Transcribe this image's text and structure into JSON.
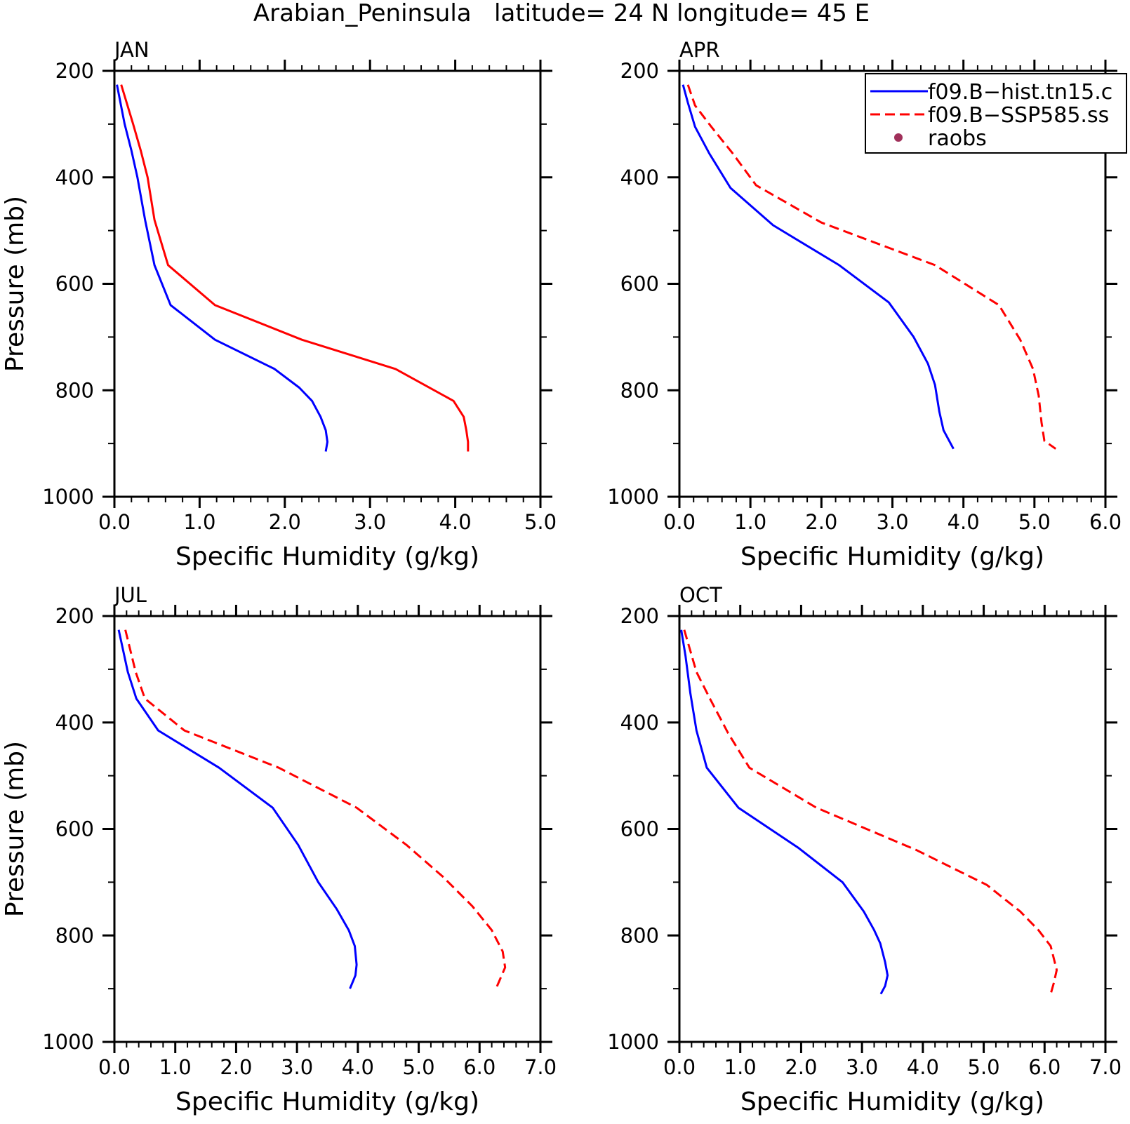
{
  "figure": {
    "title": "Arabian_Peninsula   latitude= 24 N longitude= 45 E"
  },
  "legend": {
    "placement": "top-right of APR panel",
    "entries": [
      {
        "label": "f09.B−hist.tn15.c",
        "color": "#0000ff",
        "style": "solid"
      },
      {
        "label": "f09.B−SSP585.ss",
        "color": "#ff0000",
        "style": "dashed"
      },
      {
        "label": "raobs",
        "color": "#a0305a",
        "style": "dot"
      }
    ]
  },
  "chart_data": [
    {
      "type": "line",
      "panel_label": "JAN",
      "xlabel": "Specific Humidity (g/kg)",
      "ylabel": "Pressure (mb)",
      "xlim": [
        0,
        5
      ],
      "ylim": [
        200,
        1000
      ],
      "xticks": [
        "0.0",
        "1.0",
        "2.0",
        "3.0",
        "4.0",
        "5.0"
      ],
      "yticks": [
        "200",
        "400",
        "600",
        "800",
        "1000"
      ],
      "series": [
        {
          "name": "f09.B−hist.tn15.c",
          "color": "#0000ff",
          "dashed": false,
          "x": [
            0.03,
            0.12,
            0.2,
            0.27,
            0.36,
            0.47,
            0.66,
            1.18,
            1.88,
            2.17,
            2.32,
            2.42,
            2.48,
            2.5,
            2.48
          ],
          "y": [
            226,
            300,
            350,
            400,
            480,
            565,
            640,
            705,
            760,
            795,
            820,
            850,
            875,
            897,
            915
          ]
        },
        {
          "name": "f09.B−SSP585.ss",
          "color": "#ff0000",
          "dashed": false,
          "x": [
            0.08,
            0.22,
            0.31,
            0.39,
            0.47,
            0.63,
            1.18,
            2.2,
            3.3,
            3.98,
            4.1,
            4.13,
            4.15,
            4.15
          ],
          "y": [
            226,
            300,
            350,
            400,
            480,
            565,
            640,
            705,
            760,
            820,
            850,
            875,
            897,
            915
          ]
        }
      ]
    },
    {
      "type": "line",
      "panel_label": "APR",
      "xlabel": "Specific Humidity (g/kg)",
      "ylabel": "",
      "xlim": [
        0,
        6
      ],
      "ylim": [
        200,
        1000
      ],
      "xticks": [
        "0.0",
        "1.0",
        "2.0",
        "3.0",
        "4.0",
        "5.0",
        "6.0"
      ],
      "yticks": [
        "200",
        "400",
        "600",
        "800",
        "1000"
      ],
      "series": [
        {
          "name": "f09.B−hist.tn15.c",
          "color": "#0000ff",
          "dashed": false,
          "x": [
            0.05,
            0.12,
            0.22,
            0.42,
            0.72,
            1.32,
            2.25,
            2.95,
            3.3,
            3.5,
            3.6,
            3.66,
            3.72,
            3.86
          ],
          "y": [
            226,
            260,
            305,
            355,
            420,
            490,
            565,
            635,
            700,
            750,
            790,
            840,
            875,
            910
          ]
        },
        {
          "name": "f09.B−SSP585.ss",
          "color": "#ff0000",
          "dashed": true,
          "x": [
            0.12,
            0.22,
            0.45,
            0.75,
            1.08,
            2.0,
            3.6,
            4.5,
            4.8,
            4.98,
            5.06,
            5.1,
            5.14,
            5.3
          ],
          "y": [
            226,
            265,
            305,
            355,
            415,
            485,
            565,
            640,
            705,
            760,
            810,
            860,
            895,
            910
          ]
        }
      ]
    },
    {
      "type": "line",
      "panel_label": "JUL",
      "xlabel": "Specific Humidity (g/kg)",
      "ylabel": "Pressure (mb)",
      "xlim": [
        0,
        7
      ],
      "ylim": [
        200,
        1000
      ],
      "xticks": [
        "0.0",
        "1.0",
        "2.0",
        "3.0",
        "4.0",
        "5.0",
        "6.0",
        "7.0"
      ],
      "yticks": [
        "200",
        "400",
        "600",
        "800",
        "1000"
      ],
      "series": [
        {
          "name": "f09.B−hist.tn15.c",
          "color": "#0000ff",
          "dashed": false,
          "x": [
            0.07,
            0.22,
            0.36,
            0.72,
            1.72,
            2.6,
            3.02,
            3.35,
            3.65,
            3.85,
            3.95,
            3.98,
            3.96,
            3.87
          ],
          "y": [
            226,
            305,
            355,
            415,
            485,
            560,
            630,
            700,
            750,
            790,
            820,
            855,
            875,
            900
          ]
        },
        {
          "name": "f09.B−SSP585.ss",
          "color": "#ff0000",
          "dashed": true,
          "x": [
            0.18,
            0.35,
            0.5,
            1.15,
            2.7,
            3.98,
            4.8,
            5.4,
            5.88,
            6.2,
            6.38,
            6.42,
            6.27
          ],
          "y": [
            226,
            305,
            355,
            415,
            485,
            560,
            630,
            690,
            745,
            790,
            830,
            860,
            900
          ]
        }
      ]
    },
    {
      "type": "line",
      "panel_label": "OCT",
      "xlabel": "Specific Humidity (g/kg)",
      "ylabel": "",
      "xlim": [
        0,
        7
      ],
      "ylim": [
        200,
        1000
      ],
      "xticks": [
        "0.0",
        "1.0",
        "2.0",
        "3.0",
        "4.0",
        "5.0",
        "6.0",
        "7.0"
      ],
      "yticks": [
        "200",
        "400",
        "600",
        "800",
        "1000"
      ],
      "series": [
        {
          "name": "f09.B−hist.tn15.c",
          "color": "#0000ff",
          "dashed": false,
          "x": [
            0.03,
            0.1,
            0.18,
            0.28,
            0.45,
            0.97,
            1.95,
            2.68,
            3.03,
            3.2,
            3.3,
            3.38,
            3.42,
            3.38,
            3.31
          ],
          "y": [
            226,
            275,
            345,
            415,
            485,
            560,
            635,
            700,
            755,
            790,
            815,
            850,
            875,
            895,
            910
          ]
        },
        {
          "name": "f09.B−SSP585.ss",
          "color": "#ff0000",
          "dashed": true,
          "x": [
            0.08,
            0.28,
            0.5,
            0.8,
            1.15,
            2.25,
            3.9,
            5.05,
            5.6,
            5.9,
            6.1,
            6.2,
            6.15,
            6.1
          ],
          "y": [
            226,
            305,
            355,
            420,
            485,
            560,
            640,
            705,
            755,
            790,
            820,
            865,
            890,
            910
          ]
        }
      ]
    }
  ]
}
